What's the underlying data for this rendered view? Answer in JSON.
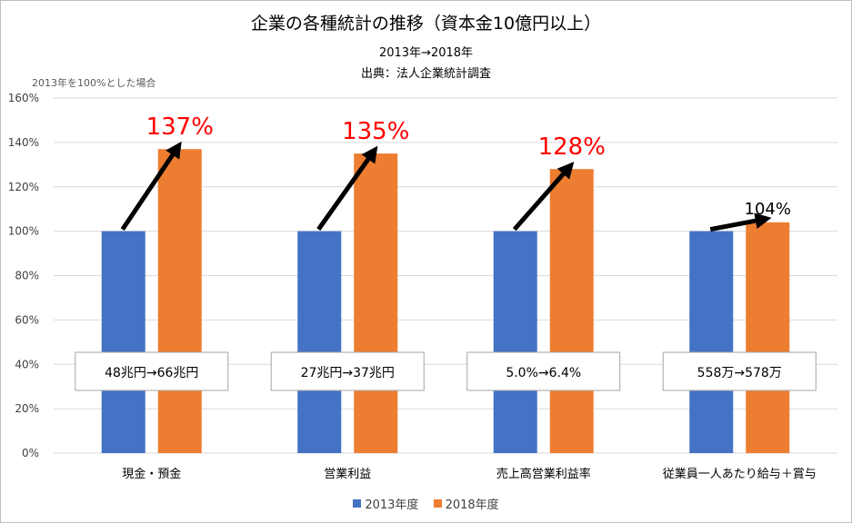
{
  "colors": {
    "series_2013": "#4472C4",
    "series_2018": "#ED7D31",
    "callout_red": "#FF0000",
    "grid": "#d9d9d9"
  },
  "chart_data": {
    "type": "bar",
    "title": "企業の各種統計の推移（資本金10億円以上）",
    "subtitle": "2013年→2018年",
    "source": "出典：法人企業統計調査",
    "note": "2013年を100%とした場合",
    "ylim": [
      0,
      160
    ],
    "yticks": [
      "0%",
      "20%",
      "40%",
      "60%",
      "80%",
      "100%",
      "120%",
      "140%",
      "160%"
    ],
    "grid": true,
    "legend_position": "bottom",
    "categories": [
      "現金・預金",
      "営業利益",
      "売上高営業利益率",
      "従業員一人あたり給与＋賞与"
    ],
    "series": [
      {
        "name": "2013年度",
        "values": [
          100,
          100,
          100,
          100
        ]
      },
      {
        "name": "2018年度",
        "values": [
          137,
          135,
          128,
          104
        ]
      }
    ],
    "annotations": [
      "137%",
      "135%",
      "128%",
      "104%"
    ],
    "boxes": [
      "48兆円→66兆円",
      "27兆円→37兆円",
      "5.0%→6.4%",
      "558万→578万"
    ]
  }
}
